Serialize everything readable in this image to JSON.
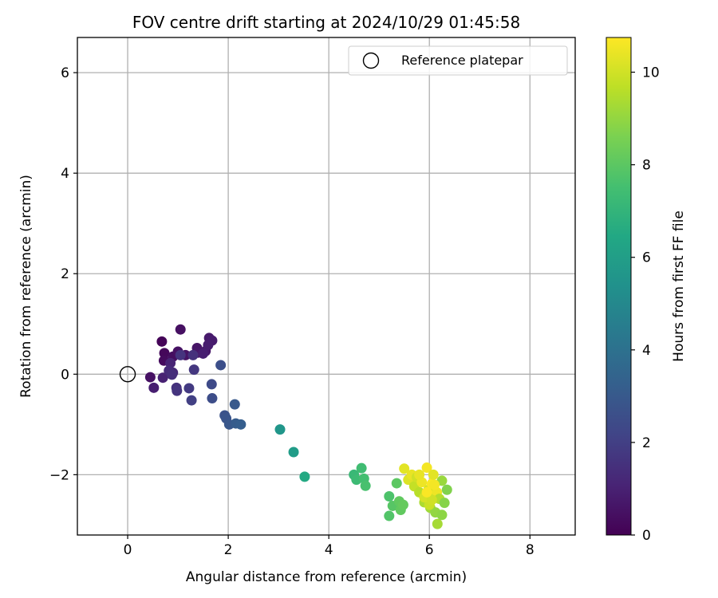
{
  "chart_data": {
    "type": "scatter",
    "title": "FOV centre drift starting at 2024/10/29 01:45:58",
    "xlabel": "Angular distance from reference (arcmin)",
    "ylabel": "Rotation from reference (arcmin)",
    "xlim": [
      -1,
      8.9
    ],
    "ylim": [
      -3.2,
      6.7
    ],
    "xticks": [
      "0",
      "2",
      "4",
      "6",
      "8"
    ],
    "yticks": [
      "6",
      "4",
      "2",
      "0",
      "−2"
    ],
    "grid": true,
    "legend": {
      "position": "top-right",
      "entries": [
        "Reference platepar"
      ]
    },
    "reference_point": {
      "name": "Reference platepar",
      "x": 0,
      "y": 0
    },
    "colorbar": {
      "label": "Hours from first FF file",
      "range": [
        0,
        10.75
      ],
      "ticks": [
        "0",
        "2",
        "4",
        "6",
        "8",
        "10"
      ],
      "colormap": "viridis"
    },
    "points": [
      {
        "x": 0.68,
        "y": 0.65,
        "h": 0.1
      },
      {
        "x": 0.73,
        "y": 0.42,
        "h": 0.2
      },
      {
        "x": 0.72,
        "y": 0.27,
        "h": 0.3
      },
      {
        "x": 0.9,
        "y": 0.35,
        "h": 0.4
      },
      {
        "x": 1.05,
        "y": 0.89,
        "h": 0.45
      },
      {
        "x": 1.0,
        "y": 0.45,
        "h": 0.5
      },
      {
        "x": 1.15,
        "y": 0.38,
        "h": 0.55
      },
      {
        "x": 1.38,
        "y": 0.52,
        "h": 0.6
      },
      {
        "x": 1.4,
        "y": 0.43,
        "h": 0.65
      },
      {
        "x": 1.55,
        "y": 0.46,
        "h": 0.7
      },
      {
        "x": 1.62,
        "y": 0.72,
        "h": 0.75
      },
      {
        "x": 1.68,
        "y": 0.67,
        "h": 0.8
      },
      {
        "x": 1.6,
        "y": 0.58,
        "h": 0.85
      },
      {
        "x": 1.5,
        "y": 0.41,
        "h": 0.9
      },
      {
        "x": 0.45,
        "y": -0.06,
        "h": 0.5
      },
      {
        "x": 0.52,
        "y": -0.27,
        "h": 0.9
      },
      {
        "x": 0.7,
        "y": -0.07,
        "h": 1.0
      },
      {
        "x": 0.85,
        "y": 0.22,
        "h": 1.1
      },
      {
        "x": 0.9,
        "y": 0.03,
        "h": 1.2
      },
      {
        "x": 0.82,
        "y": 0.07,
        "h": 1.3
      },
      {
        "x": 0.88,
        "y": -0.01,
        "h": 1.4
      },
      {
        "x": 0.97,
        "y": -0.27,
        "h": 1.5
      },
      {
        "x": 0.98,
        "y": -0.33,
        "h": 1.6
      },
      {
        "x": 1.05,
        "y": 0.38,
        "h": 1.6
      },
      {
        "x": 1.3,
        "y": 0.38,
        "h": 1.5
      },
      {
        "x": 1.32,
        "y": 0.09,
        "h": 1.7
      },
      {
        "x": 1.22,
        "y": -0.28,
        "h": 1.8
      },
      {
        "x": 1.27,
        "y": -0.52,
        "h": 2.0
      },
      {
        "x": 1.67,
        "y": -0.2,
        "h": 2.4
      },
      {
        "x": 1.68,
        "y": -0.48,
        "h": 2.5
      },
      {
        "x": 1.85,
        "y": 0.18,
        "h": 2.6
      },
      {
        "x": 1.93,
        "y": -0.82,
        "h": 2.7
      },
      {
        "x": 1.96,
        "y": -0.88,
        "h": 2.8
      },
      {
        "x": 2.02,
        "y": -1.0,
        "h": 2.9
      },
      {
        "x": 2.13,
        "y": -0.6,
        "h": 3.0
      },
      {
        "x": 2.15,
        "y": -0.98,
        "h": 3.1
      },
      {
        "x": 2.25,
        "y": -1.0,
        "h": 3.2
      },
      {
        "x": 3.03,
        "y": -1.1,
        "h": 5.6
      },
      {
        "x": 3.3,
        "y": -1.55,
        "h": 5.9
      },
      {
        "x": 3.52,
        "y": -2.04,
        "h": 6.5
      },
      {
        "x": 4.5,
        "y": -2.0,
        "h": 7.2
      },
      {
        "x": 4.55,
        "y": -2.1,
        "h": 7.3
      },
      {
        "x": 4.65,
        "y": -1.87,
        "h": 7.4
      },
      {
        "x": 4.7,
        "y": -2.08,
        "h": 7.5
      },
      {
        "x": 4.73,
        "y": -2.22,
        "h": 7.6
      },
      {
        "x": 5.2,
        "y": -2.43,
        "h": 7.7
      },
      {
        "x": 5.2,
        "y": -2.82,
        "h": 7.8
      },
      {
        "x": 5.27,
        "y": -2.62,
        "h": 7.9
      },
      {
        "x": 5.35,
        "y": -2.17,
        "h": 8.0
      },
      {
        "x": 5.4,
        "y": -2.53,
        "h": 8.1
      },
      {
        "x": 5.43,
        "y": -2.7,
        "h": 8.1
      },
      {
        "x": 5.48,
        "y": -2.6,
        "h": 8.2
      },
      {
        "x": 5.5,
        "y": -1.88,
        "h": 10.3
      },
      {
        "x": 5.58,
        "y": -2.1,
        "h": 10.2
      },
      {
        "x": 5.65,
        "y": -2.0,
        "h": 10.4
      },
      {
        "x": 5.7,
        "y": -2.23,
        "h": 9.8
      },
      {
        "x": 5.75,
        "y": -2.05,
        "h": 10.0
      },
      {
        "x": 5.8,
        "y": -2.35,
        "h": 9.6
      },
      {
        "x": 5.85,
        "y": -2.15,
        "h": 10.5
      },
      {
        "x": 5.9,
        "y": -2.55,
        "h": 9.4
      },
      {
        "x": 5.95,
        "y": -1.86,
        "h": 10.6
      },
      {
        "x": 5.98,
        "y": -2.3,
        "h": 10.1
      },
      {
        "x": 6.0,
        "y": -2.42,
        "h": 9.7
      },
      {
        "x": 6.02,
        "y": -2.66,
        "h": 9.2
      },
      {
        "x": 6.05,
        "y": -2.18,
        "h": 10.7
      },
      {
        "x": 6.08,
        "y": -2.0,
        "h": 10.3
      },
      {
        "x": 6.12,
        "y": -2.75,
        "h": 9.0
      },
      {
        "x": 6.15,
        "y": -2.35,
        "h": 10.5
      },
      {
        "x": 6.16,
        "y": -2.98,
        "h": 9.3
      },
      {
        "x": 6.2,
        "y": -2.48,
        "h": 9.5
      },
      {
        "x": 6.25,
        "y": -2.12,
        "h": 9.1
      },
      {
        "x": 6.25,
        "y": -2.8,
        "h": 8.9
      },
      {
        "x": 6.3,
        "y": -2.56,
        "h": 8.8
      },
      {
        "x": 6.35,
        "y": -2.3,
        "h": 8.7
      },
      {
        "x": 6.0,
        "y": -2.6,
        "h": 9.9
      },
      {
        "x": 5.9,
        "y": -2.45,
        "h": 10.1
      },
      {
        "x": 6.1,
        "y": -2.2,
        "h": 10.6
      },
      {
        "x": 5.8,
        "y": -2.0,
        "h": 10.4
      },
      {
        "x": 6.05,
        "y": -2.5,
        "h": 10.0
      },
      {
        "x": 5.95,
        "y": -2.35,
        "h": 10.7
      }
    ]
  }
}
